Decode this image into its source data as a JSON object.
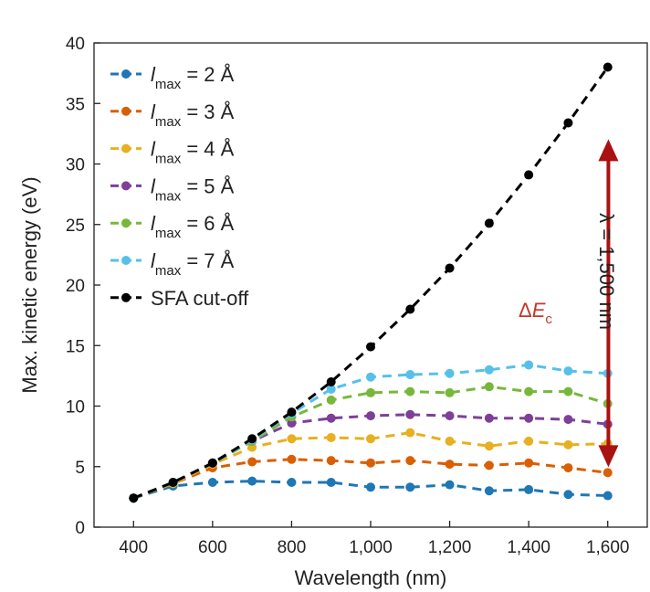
{
  "chart_data": {
    "type": "line",
    "xlabel": "Wavelength (nm)",
    "ylabel": "Max. kinetic energy (eV)",
    "xlim": [
      300,
      1700
    ],
    "ylim": [
      0,
      40
    ],
    "xticks": [
      400,
      600,
      800,
      1000,
      1200,
      1400,
      1600
    ],
    "xtick_labels": [
      "400",
      "600",
      "800",
      "1,000",
      "1,200",
      "1,400",
      "1,600"
    ],
    "yticks": [
      0,
      5,
      10,
      15,
      20,
      25,
      30,
      35,
      40
    ],
    "ytick_labels": [
      "0",
      "5",
      "10",
      "15",
      "20",
      "25",
      "30",
      "35",
      "40"
    ],
    "x": [
      400,
      500,
      600,
      700,
      800,
      900,
      1000,
      1100,
      1200,
      1300,
      1400,
      1500,
      1600
    ],
    "series": [
      {
        "name_italic": "l",
        "name_sub": "max",
        "name_rest": " = 2 Å",
        "color": "#1f77b4",
        "values": [
          2.4,
          3.4,
          3.7,
          3.8,
          3.7,
          3.7,
          3.3,
          3.3,
          3.5,
          3.0,
          3.1,
          2.7,
          2.6
        ]
      },
      {
        "name_italic": "l",
        "name_sub": "max",
        "name_rest": " = 3 Å",
        "color": "#d95f02",
        "values": [
          2.4,
          3.6,
          4.9,
          5.4,
          5.6,
          5.5,
          5.3,
          5.5,
          5.2,
          5.1,
          5.3,
          4.9,
          4.5
        ]
      },
      {
        "name_italic": "l",
        "name_sub": "max",
        "name_rest": " = 4 Å",
        "color": "#e6b020",
        "values": [
          2.4,
          3.6,
          5.2,
          6.6,
          7.3,
          7.4,
          7.3,
          7.8,
          7.1,
          6.7,
          7.1,
          6.8,
          6.9
        ]
      },
      {
        "name_italic": "l",
        "name_sub": "max",
        "name_rest": " = 5 Å",
        "color": "#7e3f98",
        "values": [
          2.4,
          3.7,
          5.3,
          7.1,
          8.6,
          9.0,
          9.2,
          9.3,
          9.2,
          9.0,
          9.0,
          8.9,
          8.5
        ]
      },
      {
        "name_italic": "l",
        "name_sub": "max",
        "name_rest": " = 6 Å",
        "color": "#77b83a",
        "values": [
          2.4,
          3.7,
          5.3,
          7.1,
          9.1,
          10.5,
          11.1,
          11.2,
          11.1,
          11.6,
          11.2,
          11.2,
          10.2
        ]
      },
      {
        "name_italic": "l",
        "name_sub": "max",
        "name_rest": " = 7 Å",
        "color": "#56c0ea",
        "values": [
          2.4,
          3.7,
          5.3,
          7.2,
          9.4,
          11.4,
          12.4,
          12.6,
          12.7,
          13.0,
          13.4,
          12.9,
          12.7
        ]
      },
      {
        "name_italic": "",
        "name_sub": "",
        "name_rest": "SFA cut-off",
        "color": "#000000",
        "values": [
          2.4,
          3.7,
          5.3,
          7.3,
          9.5,
          12.0,
          14.9,
          18.0,
          21.4,
          25.1,
          29.1,
          33.4,
          38.0
        ]
      }
    ],
    "annotations": {
      "arrow_x": 1500,
      "arrow_y_top": 31.9,
      "arrow_y_bottom": 5.1,
      "arrow_color": "#aa1111",
      "delta_label_main": "ΔE",
      "delta_label_sub": "c",
      "lambda_label": "λ = 1,500 nm"
    },
    "legend_position": "top-left"
  }
}
